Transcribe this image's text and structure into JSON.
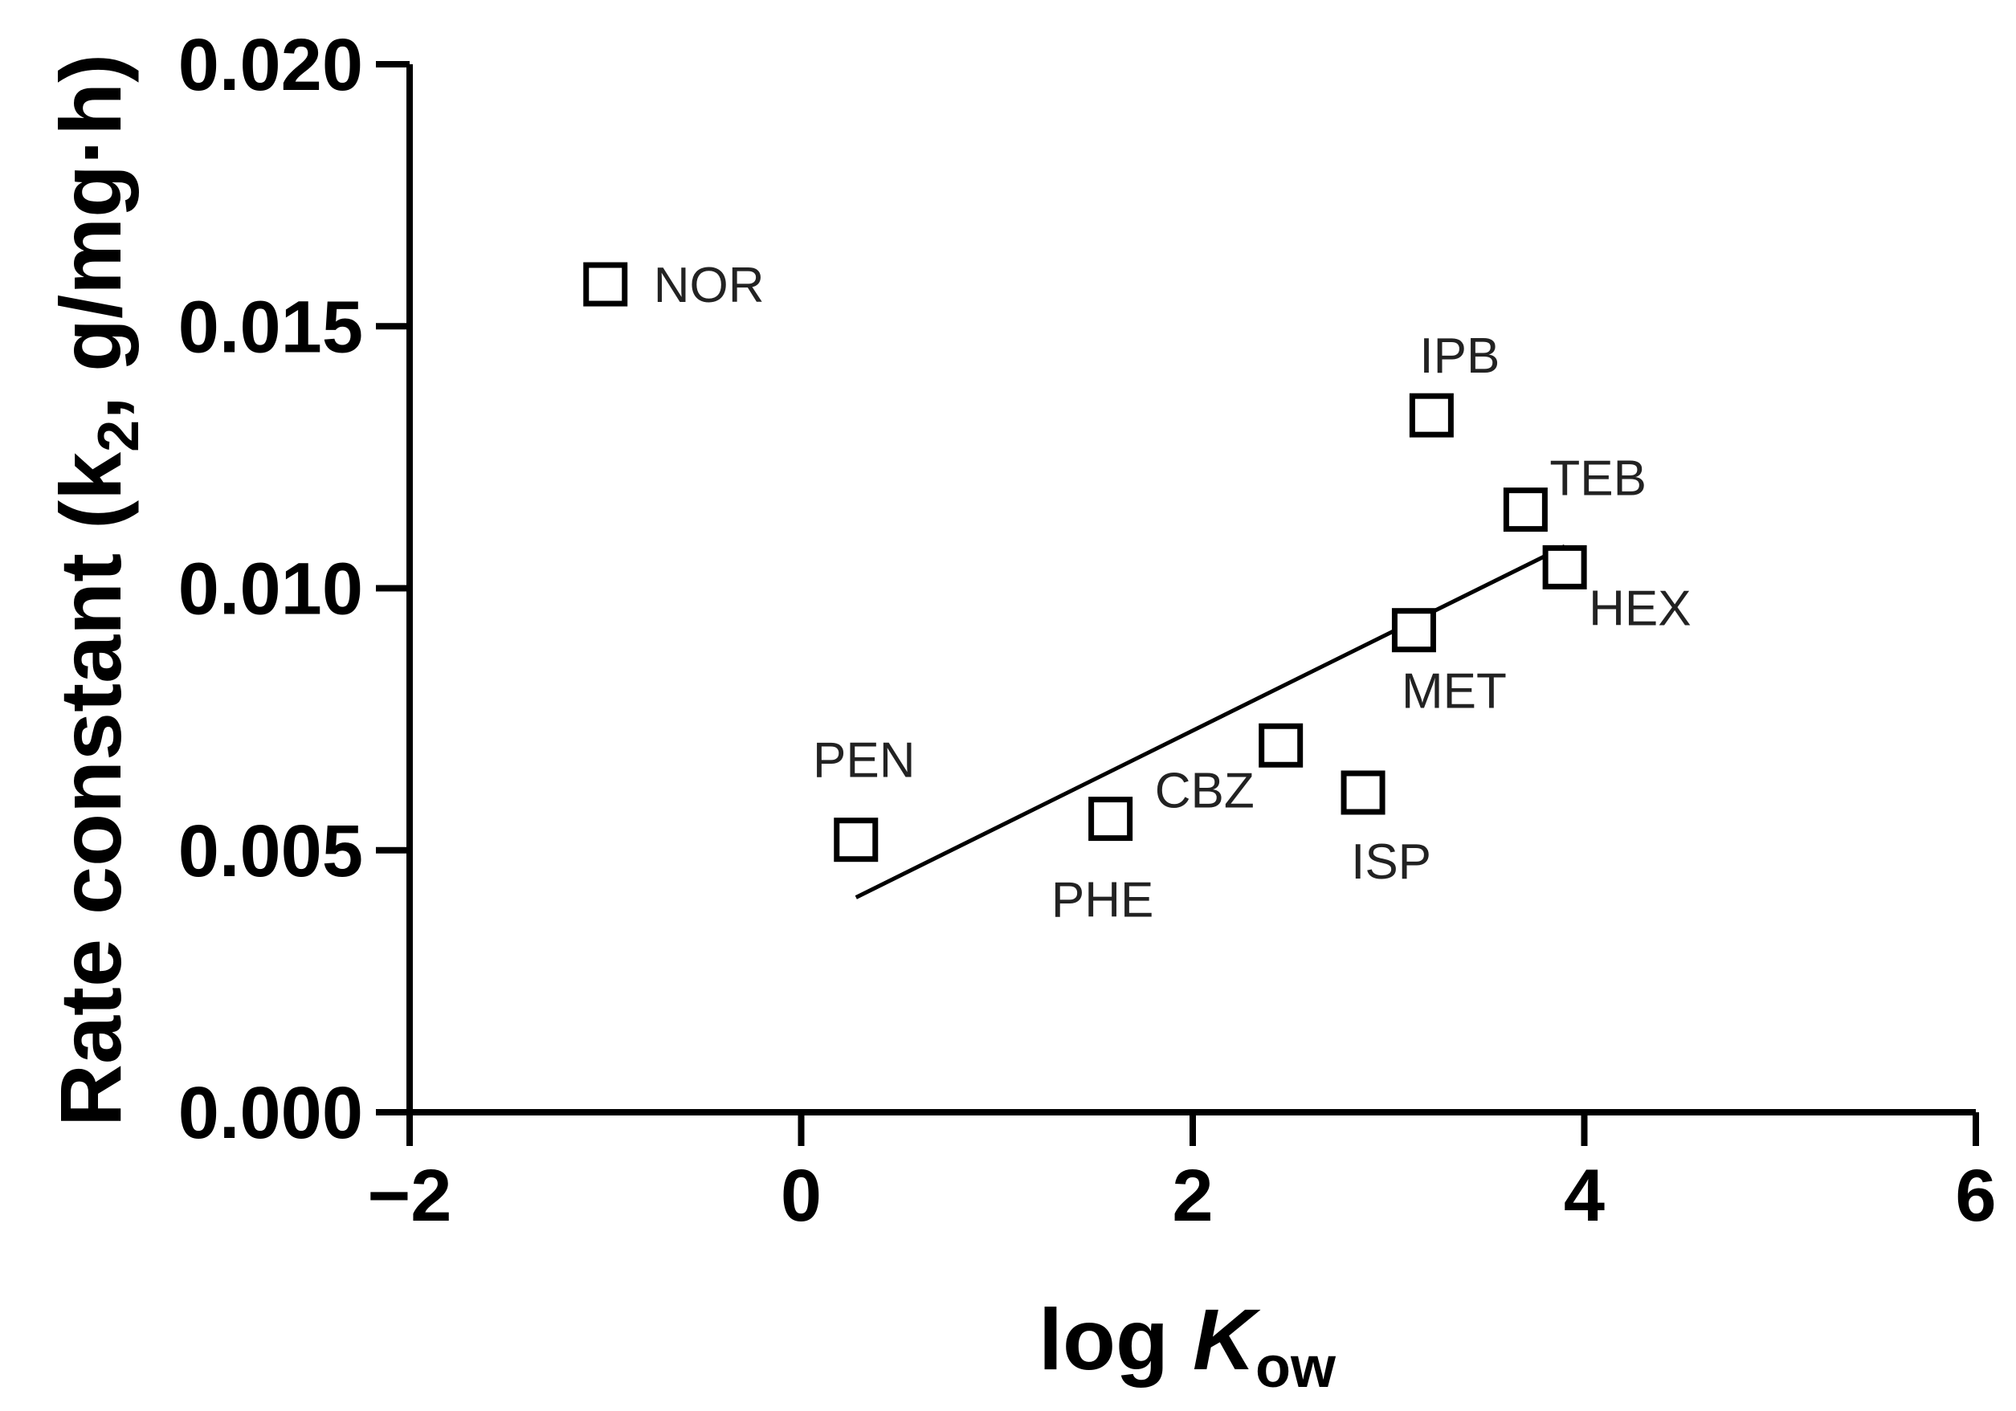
{
  "chart_data": {
    "type": "scatter",
    "title": "",
    "xlabel_parts": {
      "prefix": "log ",
      "italic": "K",
      "subscript": "ow"
    },
    "ylabel_parts": {
      "prefix": "Rate constant (k",
      "subscript": "2",
      "suffix": ", g/mg·h)"
    },
    "xlim": [
      -2,
      6
    ],
    "ylim": [
      0,
      0.02
    ],
    "x_ticks": [
      -2,
      0,
      2,
      4,
      6
    ],
    "x_tick_labels": [
      "−2",
      "0",
      "2",
      "4",
      "6"
    ],
    "y_ticks": [
      0,
      0.005,
      0.01,
      0.015,
      0.02
    ],
    "y_tick_labels": [
      "0.000",
      "0.005",
      "0.010",
      "0.015",
      "0.020"
    ],
    "grid": false,
    "marker": "open-square",
    "points": [
      {
        "label": "NOR",
        "x": -1.0,
        "y": 0.0158
      },
      {
        "label": "PEN",
        "x": 0.28,
        "y": 0.0052
      },
      {
        "label": "PHE",
        "x": 1.58,
        "y": 0.0056
      },
      {
        "label": "CBZ",
        "x": 2.45,
        "y": 0.007
      },
      {
        "label": "ISP",
        "x": 2.87,
        "y": 0.0061
      },
      {
        "label": "MET",
        "x": 3.13,
        "y": 0.0092
      },
      {
        "label": "IPB",
        "x": 3.22,
        "y": 0.0133
      },
      {
        "label": "TEB",
        "x": 3.7,
        "y": 0.0115
      },
      {
        "label": "HEX",
        "x": 3.9,
        "y": 0.0104
      }
    ],
    "regression_line": {
      "x": [
        0.28,
        3.9
      ],
      "y": [
        0.0041,
        0.0108
      ]
    }
  }
}
